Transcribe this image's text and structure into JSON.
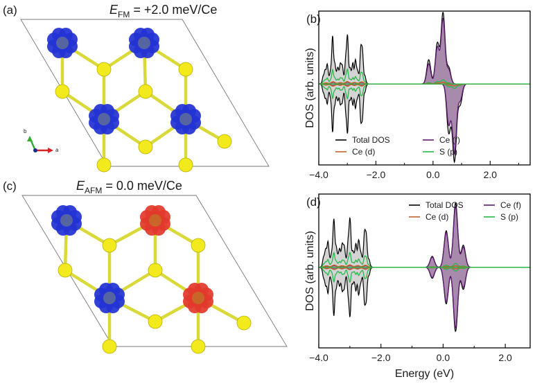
{
  "panels": {
    "a": {
      "label": "(a)",
      "title_E": "E",
      "title_sub": "FM",
      "title_value": " = +2.0 meV/Ce",
      "moments": [
        "up",
        "up",
        "up",
        "up"
      ]
    },
    "c": {
      "label": "(c)",
      "title_E": "E",
      "title_sub": "AFM",
      "title_value": " = 0.0 meV/Ce",
      "moments": [
        "up",
        "down",
        "up",
        "down"
      ]
    },
    "b": {
      "label": "(b)"
    },
    "d": {
      "label": "(d)"
    }
  },
  "axes_gizmo": {
    "b_label": "b",
    "a_label": "a"
  },
  "colors": {
    "spin_up": "#2433d4",
    "spin_down": "#e2392c",
    "sulfur": "#f2ea1c",
    "bond": "#d9da3a",
    "total": "#000000",
    "total_fill": "#d4d4d4",
    "ce_d": "#c0622a",
    "ce_f": "#5e1a6e",
    "ce_f_fill": "#a88aac",
    "s_p": "#27b84a"
  },
  "chart_data": [
    {
      "type": "area",
      "panel": "(b)",
      "xlabel": "",
      "ylabel": "DOS (arb. units)",
      "xlim": [
        -4.0,
        3.4
      ],
      "ylim": [
        -2.0,
        1.8
      ],
      "xticks": [
        "-4.0",
        "-2.0",
        "0.0",
        "2.0"
      ],
      "xtick_values": [
        -4.0,
        -2.0,
        0.0,
        2.0
      ],
      "legend": [
        "Total DOS",
        "Ce (d)",
        "Ce (f)",
        "S (p)"
      ],
      "legend_position": "bottom-left",
      "valence_band_range": [
        -3.85,
        -2.25
      ],
      "series": [
        {
          "name": "Total DOS",
          "up_peaks": [
            [
              -3.75,
              0.45
            ],
            [
              -3.5,
              0.9
            ],
            [
              -3.25,
              0.55
            ],
            [
              -3.0,
              0.95
            ],
            [
              -2.75,
              0.6
            ],
            [
              -2.5,
              0.85
            ]
          ],
          "down_peaks": [
            [
              -3.75,
              0.45
            ],
            [
              -3.5,
              0.9
            ],
            [
              -3.25,
              0.55
            ],
            [
              -3.0,
              0.95
            ],
            [
              -2.75,
              0.6
            ],
            [
              -2.5,
              0.85
            ]
          ],
          "f_up": [
            [
              -0.15,
              0.6
            ],
            [
              0.15,
              1.0
            ],
            [
              0.35,
              1.75
            ],
            [
              0.55,
              0.4
            ]
          ],
          "f_down": [
            [
              0.55,
              1.2
            ],
            [
              0.75,
              1.9
            ],
            [
              0.95,
              0.5
            ]
          ]
        },
        {
          "name": "Ce (d)",
          "peak": 0.06
        },
        {
          "name": "Ce (f)",
          "f_up": [
            [
              -0.15,
              0.5
            ],
            [
              0.15,
              0.9
            ],
            [
              0.35,
              1.6
            ],
            [
              0.55,
              0.35
            ]
          ],
          "f_down": [
            [
              0.55,
              1.0
            ],
            [
              0.75,
              1.7
            ],
            [
              0.95,
              0.4
            ]
          ]
        },
        {
          "name": "S (p)",
          "scale": 0.3
        }
      ]
    },
    {
      "type": "area",
      "panel": "(d)",
      "xlabel": "Energy (eV)",
      "ylabel": "DOS (arb. units)",
      "xlim": [
        -4.0,
        2.8
      ],
      "ylim": [
        -2.2,
        2.0
      ],
      "xticks": [
        "-4.0",
        "-2.0",
        "0.0",
        "2.0"
      ],
      "xtick_values": [
        -4.0,
        -2.0,
        0.0,
        2.0
      ],
      "legend": [
        "Total DOS",
        "Ce (d)",
        "Ce (f)",
        "S (p)"
      ],
      "legend_position": "top-right",
      "valence_band_range": [
        -3.85,
        -2.25
      ],
      "series": [
        {
          "name": "Total DOS",
          "up_peaks": [
            [
              -3.75,
              0.65
            ],
            [
              -3.5,
              1.0
            ],
            [
              -3.25,
              0.7
            ],
            [
              -3.0,
              1.05
            ],
            [
              -2.75,
              0.75
            ],
            [
              -2.5,
              0.9
            ]
          ],
          "down_peaks": [
            [
              -3.75,
              0.65
            ],
            [
              -3.5,
              1.0
            ],
            [
              -3.25,
              0.7
            ],
            [
              -3.0,
              1.05
            ],
            [
              -2.75,
              0.75
            ],
            [
              -2.5,
              0.9
            ]
          ],
          "f_up": [
            [
              -0.35,
              0.3
            ],
            [
              0.1,
              1.0
            ],
            [
              0.4,
              1.75
            ],
            [
              0.65,
              0.6
            ]
          ],
          "f_down": [
            [
              -0.35,
              0.3
            ],
            [
              0.1,
              1.0
            ],
            [
              0.4,
              1.75
            ],
            [
              0.65,
              0.6
            ]
          ]
        },
        {
          "name": "Ce (d)",
          "peak": 0.06
        },
        {
          "name": "Ce (f)",
          "f_up": [
            [
              -0.35,
              0.28
            ],
            [
              0.1,
              0.95
            ],
            [
              0.4,
              1.65
            ],
            [
              0.65,
              0.55
            ]
          ],
          "f_down": [
            [
              -0.35,
              0.28
            ],
            [
              0.1,
              0.95
            ],
            [
              0.4,
              1.65
            ],
            [
              0.65,
              0.55
            ]
          ]
        },
        {
          "name": "S (p)",
          "scale": 0.3
        }
      ]
    }
  ]
}
